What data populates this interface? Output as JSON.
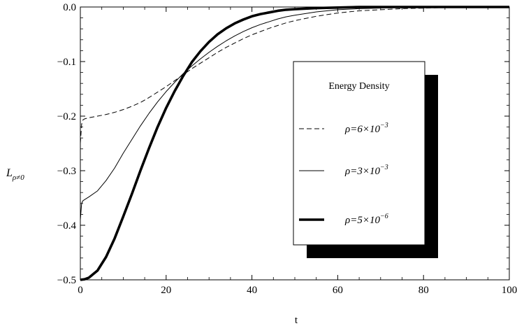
{
  "chart_data": {
    "type": "line",
    "title": "",
    "xlabel": "t",
    "ylabel": "L",
    "ylabel_sub": "ρ≠0",
    "xlim": [
      0,
      100
    ],
    "ylim": [
      -0.5,
      0.0
    ],
    "xticks": [
      0,
      20,
      40,
      60,
      80,
      100
    ],
    "yticks": [
      0.0,
      -0.1,
      -0.2,
      -0.3,
      -0.4,
      -0.5
    ],
    "ytick_labels": [
      "0.0",
      "−0.1",
      "−0.2",
      "−0.3",
      "−0.4",
      "−0.5"
    ],
    "grid": false,
    "legend": {
      "title": "Energy Density",
      "placement": "center-right"
    },
    "series": [
      {
        "name": "ρ=6×10",
        "name_exp": "−3",
        "style": "dashed",
        "weight": "thin",
        "x": [
          0,
          0.3,
          0.6,
          1,
          2,
          4,
          6,
          8,
          10,
          12,
          14,
          16,
          18,
          20,
          22,
          24,
          26,
          28,
          30,
          32,
          34,
          36,
          38,
          40,
          42,
          44,
          46,
          48,
          50,
          55,
          60,
          65,
          70,
          75,
          80,
          85,
          90,
          95,
          100
        ],
        "y": [
          -0.25,
          -0.215,
          -0.207,
          -0.205,
          -0.203,
          -0.2,
          -0.197,
          -0.193,
          -0.188,
          -0.182,
          -0.175,
          -0.166,
          -0.156,
          -0.146,
          -0.135,
          -0.124,
          -0.113,
          -0.103,
          -0.093,
          -0.083,
          -0.074,
          -0.066,
          -0.058,
          -0.051,
          -0.045,
          -0.039,
          -0.034,
          -0.029,
          -0.025,
          -0.017,
          -0.011,
          -0.007,
          -0.005,
          -0.003,
          -0.002,
          -0.001,
          -0.001,
          0.0,
          0.0
        ]
      },
      {
        "name": "ρ=3×10",
        "name_exp": "−3",
        "style": "solid",
        "weight": "thin",
        "x": [
          0,
          0.3,
          0.6,
          1,
          2,
          4,
          6,
          8,
          10,
          12,
          14,
          16,
          18,
          20,
          22,
          24,
          26,
          28,
          30,
          32,
          34,
          36,
          38,
          40,
          42,
          44,
          46,
          48,
          50,
          55,
          60,
          65,
          70,
          75,
          80,
          85,
          90,
          95,
          100
        ],
        "y": [
          -0.39,
          -0.36,
          -0.355,
          -0.353,
          -0.348,
          -0.337,
          -0.318,
          -0.295,
          -0.268,
          -0.243,
          -0.218,
          -0.195,
          -0.174,
          -0.155,
          -0.138,
          -0.122,
          -0.108,
          -0.095,
          -0.083,
          -0.072,
          -0.062,
          -0.053,
          -0.045,
          -0.038,
          -0.032,
          -0.027,
          -0.022,
          -0.018,
          -0.015,
          -0.009,
          -0.005,
          -0.003,
          -0.002,
          -0.001,
          -0.001,
          0.0,
          0.0,
          0.0,
          0.0
        ]
      },
      {
        "name": "ρ=5×10",
        "name_exp": "−6",
        "style": "solid",
        "weight": "thick",
        "x": [
          0,
          1,
          2,
          4,
          6,
          8,
          10,
          12,
          14,
          16,
          18,
          20,
          22,
          24,
          26,
          28,
          30,
          32,
          34,
          36,
          38,
          40,
          42,
          44,
          46,
          48,
          50,
          55,
          60,
          65,
          70,
          75,
          80,
          85,
          90,
          95,
          100
        ],
        "y": [
          -0.5,
          -0.499,
          -0.496,
          -0.483,
          -0.458,
          -0.424,
          -0.384,
          -0.343,
          -0.3,
          -0.259,
          -0.22,
          -0.185,
          -0.154,
          -0.126,
          -0.101,
          -0.081,
          -0.064,
          -0.05,
          -0.039,
          -0.03,
          -0.023,
          -0.017,
          -0.013,
          -0.01,
          -0.007,
          -0.005,
          -0.004,
          -0.002,
          -0.001,
          0.0,
          0.0,
          0.0,
          0.0,
          0.0,
          0.0,
          0.0,
          0.0
        ]
      }
    ]
  }
}
